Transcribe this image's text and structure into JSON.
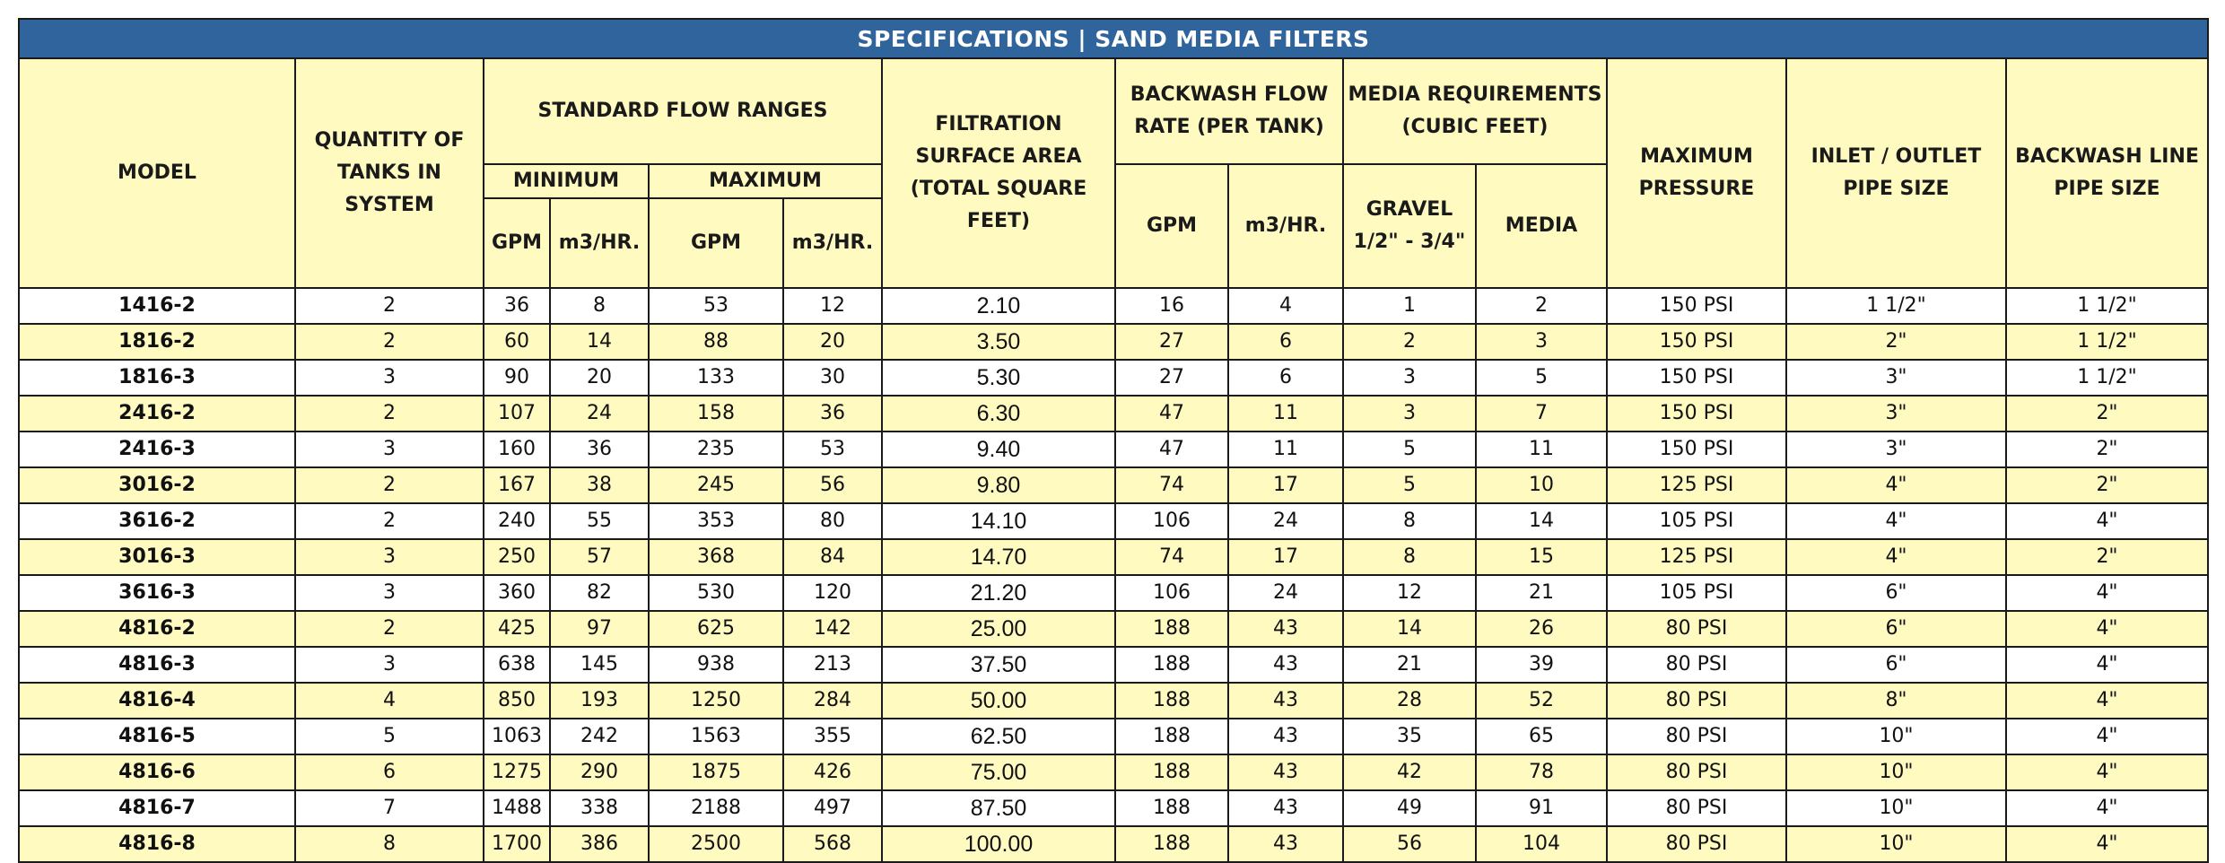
{
  "title": "SPECIFICATIONS | SAND MEDIA FILTERS",
  "headers": {
    "model": "MODEL",
    "tanks": "QUANTITY OF TANKS IN SYSTEM",
    "flow": "STANDARD FLOW RANGES",
    "minimum": "MINIMUM",
    "maximum": "MAXIMUM",
    "gpm": "GPM",
    "m3": "m3/HR.",
    "area": "FILTRATION SURFACE AREA (TOTAL SQUARE FEET)",
    "backwash": "BACKWASH FLOW RATE (PER TANK)",
    "media_req": "MEDIA REQUIREMENTS (CUBIC FEET)",
    "gravel": "GRAVEL 1/2\" - 3/4\"",
    "media": "MEDIA",
    "pressure": "MAXIMUM PRESSURE",
    "inlet": "INLET / OUTLET PIPE SIZE",
    "backwash_line": "BACKWASH LINE PIPE SIZE"
  },
  "rows": [
    [
      "1416-2",
      "2",
      "36",
      "8",
      "53",
      "12",
      "2.10",
      "16",
      "4",
      "1",
      "2",
      "150 PSI",
      "1 1/2\"",
      "1 1/2\""
    ],
    [
      "1816-2",
      "2",
      "60",
      "14",
      "88",
      "20",
      "3.50",
      "27",
      "6",
      "2",
      "3",
      "150 PSI",
      "2\"",
      "1 1/2\""
    ],
    [
      "1816-3",
      "3",
      "90",
      "20",
      "133",
      "30",
      "5.30",
      "27",
      "6",
      "3",
      "5",
      "150 PSI",
      "3\"",
      "1 1/2\""
    ],
    [
      "2416-2",
      "2",
      "107",
      "24",
      "158",
      "36",
      "6.30",
      "47",
      "11",
      "3",
      "7",
      "150 PSI",
      "3\"",
      "2\""
    ],
    [
      "2416-3",
      "3",
      "160",
      "36",
      "235",
      "53",
      "9.40",
      "47",
      "11",
      "5",
      "11",
      "150 PSI",
      "3\"",
      "2\""
    ],
    [
      "3016-2",
      "2",
      "167",
      "38",
      "245",
      "56",
      "9.80",
      "74",
      "17",
      "5",
      "10",
      "125 PSI",
      "4\"",
      "2\""
    ],
    [
      "3616-2",
      "2",
      "240",
      "55",
      "353",
      "80",
      "14.10",
      "106",
      "24",
      "8",
      "14",
      "105 PSI",
      "4\"",
      "4\""
    ],
    [
      "3016-3",
      "3",
      "250",
      "57",
      "368",
      "84",
      "14.70",
      "74",
      "17",
      "8",
      "15",
      "125 PSI",
      "4\"",
      "2\""
    ],
    [
      "3616-3",
      "3",
      "360",
      "82",
      "530",
      "120",
      "21.20",
      "106",
      "24",
      "12",
      "21",
      "105 PSI",
      "6\"",
      "4\""
    ],
    [
      "4816-2",
      "2",
      "425",
      "97",
      "625",
      "142",
      "25.00",
      "188",
      "43",
      "14",
      "26",
      "80 PSI",
      "6\"",
      "4\""
    ],
    [
      "4816-3",
      "3",
      "638",
      "145",
      "938",
      "213",
      "37.50",
      "188",
      "43",
      "21",
      "39",
      "80 PSI",
      "6\"",
      "4\""
    ],
    [
      "4816-4",
      "4",
      "850",
      "193",
      "1250",
      "284",
      "50.00",
      "188",
      "43",
      "28",
      "52",
      "80 PSI",
      "8\"",
      "4\""
    ],
    [
      "4816-5",
      "5",
      "1063",
      "242",
      "1563",
      "355",
      "62.50",
      "188",
      "43",
      "35",
      "65",
      "80 PSI",
      "10\"",
      "4\""
    ],
    [
      "4816-6",
      "6",
      "1275",
      "290",
      "1875",
      "426",
      "75.00",
      "188",
      "43",
      "42",
      "78",
      "80 PSI",
      "10\"",
      "4\""
    ],
    [
      "4816-7",
      "7",
      "1488",
      "338",
      "2188",
      "497",
      "87.50",
      "188",
      "43",
      "49",
      "91",
      "80 PSI",
      "10\"",
      "4\""
    ],
    [
      "4816-8",
      "8",
      "1700",
      "386",
      "2500",
      "568",
      "100.00",
      "188",
      "43",
      "56",
      "104",
      "80 PSI",
      "10\"",
      "4\""
    ]
  ]
}
